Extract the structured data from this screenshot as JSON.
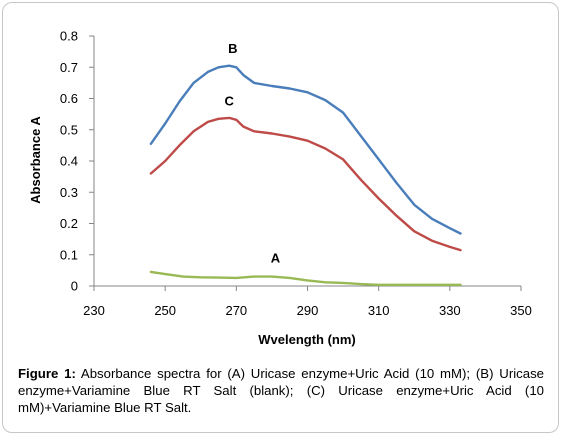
{
  "caption": {
    "label": "Figure 1:",
    "text": " Absorbance spectra for (A) Uricase enzyme+Uric Acid (10 mM); (B) Uricase enzyme+Variamine Blue RT Salt (blank); (C) Uricase enzyme+Uric Acid (10 mM)+Variamine Blue RT Salt."
  },
  "chart_data": {
    "type": "line",
    "title": "",
    "xlabel": "Wvelength (nm)",
    "ylabel": "Absorbance A",
    "xlim": [
      230,
      350
    ],
    "ylim": [
      0,
      0.8
    ],
    "xticks": [
      230,
      250,
      270,
      290,
      310,
      330,
      350
    ],
    "yticks": [
      0,
      0.1,
      0.2,
      0.3,
      0.4,
      0.5,
      0.6,
      0.7,
      0.8
    ],
    "ytick_labels": [
      "0",
      "0.1",
      "0.2",
      "0.3",
      "0.4",
      "0.5",
      "0.6",
      "0.7",
      "0.8"
    ],
    "grid": false,
    "series": [
      {
        "name": "B",
        "color": "#4a7ebb",
        "x": [
          246,
          250,
          254,
          258,
          262,
          265,
          268,
          270,
          272,
          275,
          280,
          285,
          290,
          295,
          300,
          305,
          310,
          315,
          320,
          325,
          330,
          333
        ],
        "y": [
          0.455,
          0.52,
          0.59,
          0.65,
          0.685,
          0.7,
          0.705,
          0.7,
          0.675,
          0.65,
          0.64,
          0.632,
          0.62,
          0.595,
          0.555,
          0.48,
          0.405,
          0.33,
          0.26,
          0.215,
          0.185,
          0.168
        ]
      },
      {
        "name": "C",
        "color": "#be4b48",
        "x": [
          246,
          250,
          254,
          258,
          262,
          265,
          268,
          270,
          272,
          275,
          280,
          285,
          290,
          295,
          300,
          305,
          310,
          315,
          320,
          325,
          330,
          333
        ],
        "y": [
          0.36,
          0.4,
          0.45,
          0.495,
          0.525,
          0.535,
          0.538,
          0.532,
          0.51,
          0.495,
          0.488,
          0.478,
          0.465,
          0.44,
          0.405,
          0.34,
          0.28,
          0.225,
          0.175,
          0.145,
          0.125,
          0.115
        ]
      },
      {
        "name": "A",
        "color": "#98b954",
        "x": [
          246,
          250,
          255,
          260,
          265,
          270,
          275,
          280,
          285,
          290,
          295,
          300,
          305,
          310,
          315,
          320,
          325,
          330,
          333
        ],
        "y": [
          0.045,
          0.038,
          0.03,
          0.028,
          0.027,
          0.026,
          0.03,
          0.03,
          0.026,
          0.018,
          0.012,
          0.01,
          0.006,
          0.004,
          0.004,
          0.004,
          0.004,
          0.004,
          0.004
        ]
      }
    ],
    "annotations": [
      {
        "text": "B",
        "x": 269,
        "y": 0.745
      },
      {
        "text": "C",
        "x": 268,
        "y": 0.578
      },
      {
        "text": "A",
        "x": 281,
        "y": 0.075
      }
    ]
  }
}
